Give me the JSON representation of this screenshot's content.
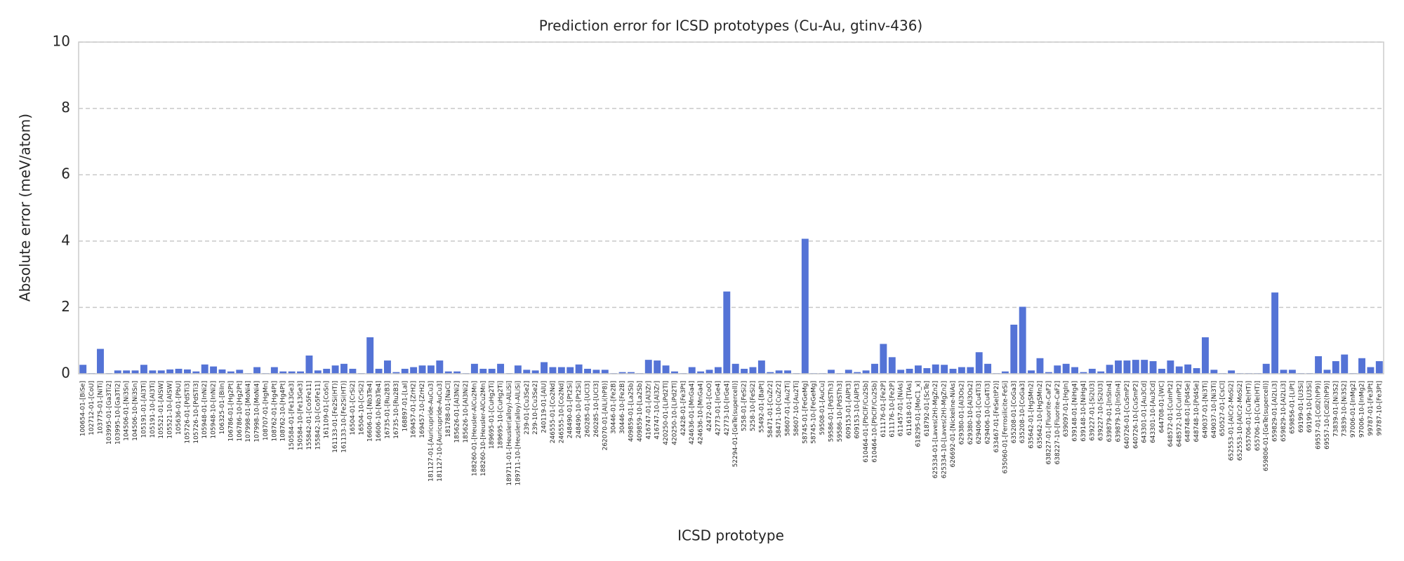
{
  "chart_data": {
    "type": "bar",
    "title": "Prediction error for ICSD prototypes (Cu-Au, gtinv-436)",
    "xlabel": "ICSD prototype",
    "ylabel": "Absolute error (meV/atom)",
    "color": "#5473d6",
    "grid": true,
    "ylim": [
      0,
      10
    ],
    "yticks": [
      0,
      2,
      4,
      6,
      8,
      10
    ],
    "categories": [
      "100654-01-[BiSe]",
      "102712-01-[CoU]",
      "103775-01-[NiTi]",
      "103995-01-[Ga3Ti2]",
      "103995-10-[Ga3Ti2]",
      "104506-01-[Ni3Sn]",
      "104506-10-[Ni3Sn]",
      "105191-01-[Al3Ti]",
      "105191-10-[Al3Ti]",
      "105521-01-[AlSW]",
      "105521-10-[AlSW]",
      "105636-01-[PbU]",
      "105726-01-[PdSTi3]",
      "105726-10-[PdSTi3]",
      "105948-01-[InNi2]",
      "105948-10-[InNi2]",
      "106325-01-[BiIn]",
      "106786-01-[Hg2Pt]",
      "106786-10-[Hg2Pt]",
      "107998-01-[MoNi4]",
      "107998-10-[MoNi4]",
      "108707-01-[HgMn]",
      "108762-01-[Hg4Pt]",
      "108762-10-[Hg4Pt]",
      "150584-01-[Fe13Ge3]",
      "150584-10-[Fe13Ge3]",
      "155842-01-[Co5Fe11]",
      "155842-10-[Co5Fe11]",
      "161109-01-[CoSn]",
      "161133-01-[Fe2Si(HT)]",
      "161133-10-[Fe2Si(HT)]",
      "16504-01-[CrSi2]",
      "16504-10-[CrSi2]",
      "16606-01-[Nb3Te4]",
      "16606-10-[Nb3Te4]",
      "16735-01-[Ru2B3]",
      "16735-10-[Ru2B3]",
      "168897-01-[LaI]",
      "169457-01-[ZrH2]",
      "169457-10-[ZrH2]",
      "181127-01-[Auricupride-AuCu3]",
      "181127-10-[Auricupride-AuCu3]",
      "181788-01-[NaCl]",
      "185626-01-[Al3Ni2]",
      "185626-10-[Al3Ni2]",
      "188260-01-[Heusler-AlCu2Mn]",
      "188260-10-[Heusler-AlCu2Mn]",
      "189695-01-[CuHg2Ti]",
      "189695-10-[CuHg2Ti]",
      "189711-01-[Heusler(alloy)-AlLiSi]",
      "189711-10-[Heusler(alloy)-AlLiSi]",
      "239-01-[Cu3Se2]",
      "239-10-[Cu3Se2]",
      "240119-01-[AlU]",
      "246555-01-[Co2Nd]",
      "246555-10-[Co2Nd]",
      "248490-01-[Pt2Si]",
      "248490-10-[Pt2Si]",
      "260285-01-[UCl3]",
      "260285-10-[UCl3]",
      "262070-01-[AlLi(hP8)]",
      "30446-01-[Fe2B]",
      "30446-10-[Fe2B]",
      "409859-01-[La2Sb]",
      "409859-10-[La2Sb]",
      "416747-01-[Al3Zr]",
      "416747-10-[Al3Zr]",
      "420250-01-[LiPd2Tl]",
      "420250-10-[LiPd2Tl]",
      "42428-01-[Fe3Pt]",
      "424636-01-[MnGa4]",
      "424636-10-[MnGa4]",
      "42472-01-[CoO]",
      "42773-01-[IrGe4]",
      "42773-10-[IrGe4]",
      "52294-01-[GeTe(supercell)]",
      "5258-01-[FeSi2]",
      "5258-10-[FeSi2]",
      "55492-01-[BaPt]",
      "58471-01-[CuZr2]",
      "58471-10-[CuZr2]",
      "58607-01-[Au2Ti]",
      "58607-10-[Au2Ti]",
      "58745-01-[FeGeMg]",
      "58745-10-[FeGeMg]",
      "59508-01-[AuCu]",
      "59586-01-[PdSTh3]",
      "59586-10-[PdSTh3]",
      "609153-01-[AlPt3]",
      "609153-10-[AlPt3]",
      "610464-01-[PbClF/Cu2Sb]",
      "610464-10-[PbClF/Cu2Sb]",
      "611176-01-[Fe2P]",
      "611176-10-[Fe2P]",
      "611457-01-[NiAs]",
      "611618-01-[TlAs]",
      "618295-01-[MoC1_x]",
      "618792-01-[ScTe]",
      "625334-01-[Laves(2H)-MgZn2]",
      "625334-10-[Laves(2H)-MgZn2]",
      "626692-01-[Nickeline-NiAs]",
      "629380-01-[Al3Os2]",
      "629380-10-[Al3Os2]",
      "629406-01-[Cu4Ti3]",
      "629406-10-[Cu4Ti3]",
      "633467-01-[FeSe(tP2)]",
      "635060-01-[Ferrosilicite-FeSi]",
      "635208-01-[CoGa3]",
      "635208-10-[CoGa3]",
      "635642-01-[HgSMn2]",
      "635642-10-[HgSMn2]",
      "638227-01-[Fluorite-CaF2]",
      "638227-10-[Fluorite-CaF2]",
      "639097-01-[HgIn]",
      "639148-01-[NiHg4]",
      "639148-10-[NiHg4]",
      "639227-01-[Si2U3]",
      "639227-10-[Si2U3]",
      "639879-01-[InSIn4]",
      "639879-10-[InSIn4]",
      "640726-01-[CuSmP2]",
      "640726-10-[CuSmP2]",
      "643301-01-[Au3Cd]",
      "643301-10-[Au3Cd]",
      "644708-01-[WC]",
      "648572-01-[CuInPt2]",
      "648572-10-[CuInPt2]",
      "648748-01-[Pd4Se]",
      "648748-10-[Pd4Se]",
      "649037-01-[Ni3Ti]",
      "649037-10-[Ni3Ti]",
      "650527-01-[CsCl]",
      "652553-01-[AlCr2-MoSi2]",
      "652553-10-[AlCr2-MoSi2]",
      "655706-01-[CuTe(HT)]",
      "655706-10-[CuTe(HT)]",
      "659806-01-[GeTe(supercell)]",
      "659829-01-[Al2Li3]",
      "659829-10-[Al2Li3]",
      "659856-01-[LiPt]",
      "69199-01-[U3Si]",
      "69199-10-[U3Si]",
      "69557-01-[CdI2(hP9)]",
      "69557-10-[CdI2(hP9)]",
      "73839-01-[Ni3S2]",
      "73839-10-[Ni3S2]",
      "97006-01-[InMg2]",
      "97006-10-[InMg2]",
      "99787-01-[Fe3Pt]",
      "99787-10-[Fe3Pt]"
    ],
    "values": [
      0.27,
      0.02,
      0.75,
      0.02,
      0.1,
      0.1,
      0.1,
      0.27,
      0.1,
      0.1,
      0.13,
      0.15,
      0.13,
      0.07,
      0.28,
      0.22,
      0.13,
      0.07,
      0.12,
      0.02,
      0.2,
      0.02,
      0.2,
      0.07,
      0.07,
      0.07,
      0.55,
      0.1,
      0.15,
      0.25,
      0.3,
      0.15,
      0.02,
      1.1,
      0.15,
      0.4,
      0.05,
      0.15,
      0.2,
      0.25,
      0.25,
      0.4,
      0.07,
      0.07,
      0.02,
      0.3,
      0.15,
      0.15,
      0.3,
      0.02,
      0.25,
      0.12,
      0.1,
      0.35,
      0.2,
      0.2,
      0.2,
      0.28,
      0.15,
      0.12,
      0.12,
      0.02,
      0.05,
      0.05,
      0.02,
      0.42,
      0.4,
      0.25,
      0.07,
      0.02,
      0.2,
      0.07,
      0.12,
      0.2,
      2.48,
      0.3,
      0.15,
      0.2,
      0.4,
      0.05,
      0.1,
      0.1,
      0.02,
      4.07,
      0.02,
      0.02,
      0.12,
      0.02,
      0.12,
      0.05,
      0.1,
      0.3,
      0.9,
      0.5,
      0.12,
      0.15,
      0.25,
      0.17,
      0.28,
      0.27,
      0.15,
      0.2,
      0.2,
      0.65,
      0.3,
      0.02,
      0.07,
      1.48,
      2.02,
      0.1,
      0.47,
      0.05,
      0.25,
      0.3,
      0.2,
      0.05,
      0.15,
      0.07,
      0.27,
      0.4,
      0.4,
      0.42,
      0.42,
      0.38,
      0.15,
      0.4,
      0.22,
      0.28,
      0.17,
      1.1,
      0.12,
      0.02,
      0.1,
      0.02,
      0.02,
      0.02,
      0.3,
      2.45,
      0.12,
      0.12,
      0.02,
      0.02,
      0.53,
      0.12,
      0.38,
      0.58,
      0.02,
      0.47,
      0.2,
      0.38
    ]
  }
}
